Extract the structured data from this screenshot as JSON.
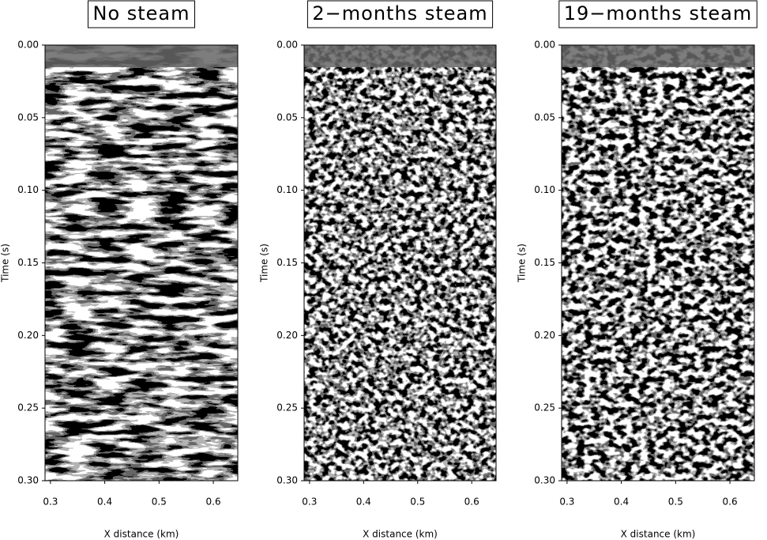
{
  "chart_data": [
    {
      "type": "image",
      "title": "No steam",
      "xlabel": "X distance (km)",
      "ylabel": "Time (s)",
      "xlim": [
        0.29,
        0.645
      ],
      "xticks": [
        0.3,
        0.4,
        0.5,
        0.6
      ],
      "ylim": [
        0,
        0.3
      ],
      "y_inverted": true,
      "yticks": [
        {
          "value": 0,
          "label": "0.00"
        },
        {
          "value": 0.05,
          "label": "0.05"
        },
        {
          "value": 0.1,
          "label": "0.10"
        },
        {
          "value": 0.15,
          "label": "0.15"
        },
        {
          "value": 0.2,
          "label": "0.20"
        },
        {
          "value": 0.25,
          "label": "0.25"
        },
        {
          "value": 0.3,
          "label": "0.30"
        }
      ]
    },
    {
      "type": "image",
      "title": "2−months steam",
      "xlabel": "X distance (km)",
      "ylabel": "Time (s)",
      "xlim": [
        0.29,
        0.645
      ],
      "xticks": [
        0.3,
        0.4,
        0.5,
        0.6
      ],
      "ylim": [
        0,
        0.3
      ],
      "y_inverted": true,
      "yticks": [
        {
          "value": 0,
          "label": "0.00"
        },
        {
          "value": 0.05,
          "label": "0.05"
        },
        {
          "value": 0.1,
          "label": "0.10"
        },
        {
          "value": 0.15,
          "label": "0.15"
        },
        {
          "value": 0.2,
          "label": "0.20"
        },
        {
          "value": 0.25,
          "label": "0.25"
        },
        {
          "value": 0.3,
          "label": "0.30"
        }
      ]
    },
    {
      "type": "image",
      "title": "19−months steam",
      "xlabel": "X distance (km)",
      "ylabel": "Time (s)",
      "xlim": [
        0.29,
        0.645
      ],
      "xticks": [
        0.3,
        0.4,
        0.5,
        0.6
      ],
      "ylim": [
        0,
        0.3
      ],
      "y_inverted": true,
      "yticks": [
        {
          "value": 0,
          "label": "0.00"
        },
        {
          "value": 0.05,
          "label": "0.05"
        },
        {
          "value": 0.1,
          "label": "0.10"
        },
        {
          "value": 0.15,
          "label": "0.15"
        },
        {
          "value": 0.2,
          "label": "0.20"
        },
        {
          "value": 0.25,
          "label": "0.25"
        },
        {
          "value": 0.3,
          "label": "0.30"
        }
      ]
    }
  ]
}
